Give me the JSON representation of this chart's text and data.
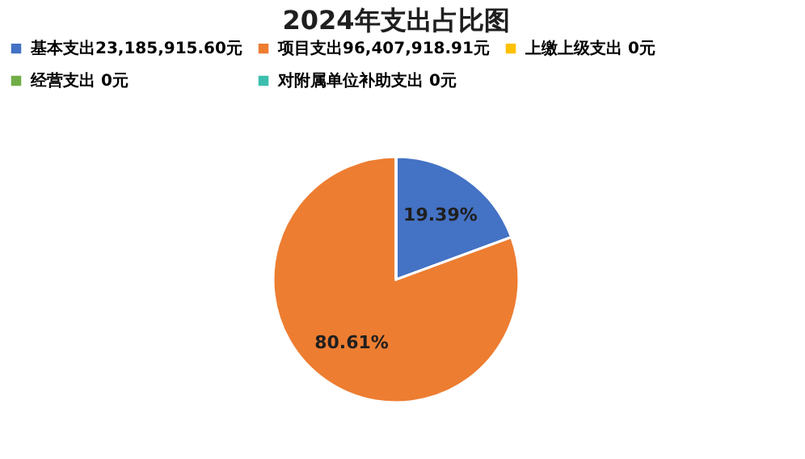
{
  "chart_data": {
    "type": "pie",
    "title": "2024年支出占比图",
    "categories": [
      "基本支出23,185,915.60元",
      "项目支出96,407,918.91元",
      "上缴上级支出 0元",
      "经营支出 0元",
      "对附属单位补助支出 0元"
    ],
    "values": [
      19.39,
      80.61,
      0,
      0,
      0
    ],
    "colors": [
      "#4472c4",
      "#ed7d31",
      "#ffc000",
      "#70ad47",
      "#3cbfae"
    ],
    "value_labels": [
      "19.39%",
      "80.61%",
      null,
      null,
      null
    ],
    "legend": "top"
  }
}
